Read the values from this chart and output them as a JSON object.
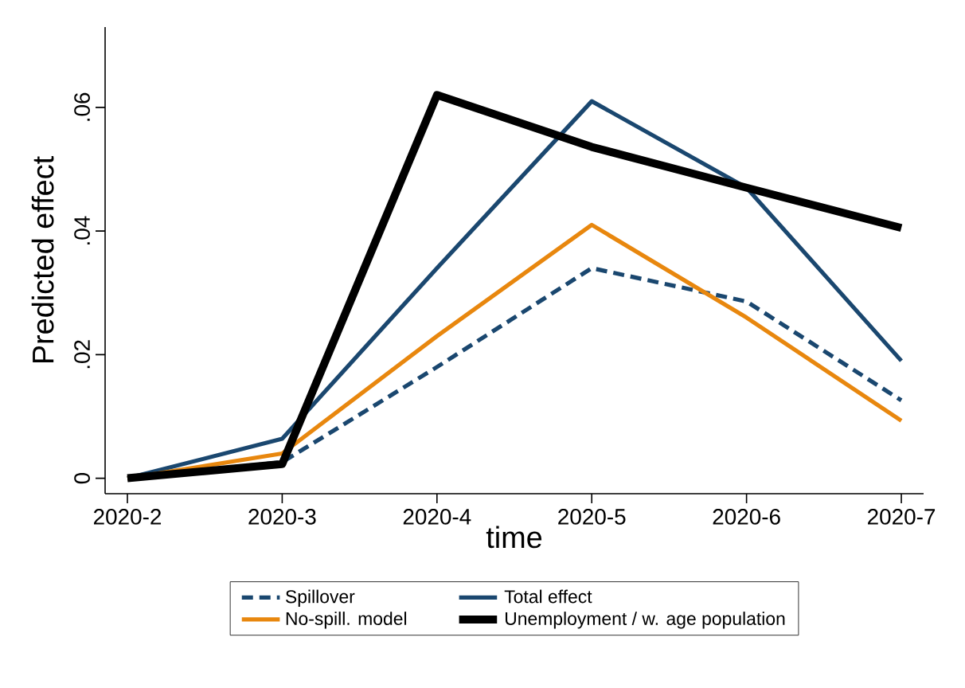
{
  "chart_data": {
    "type": "line",
    "xlabel": "time",
    "ylabel": "Predicted effect",
    "categories": [
      "2020-2",
      "2020-3",
      "2020-4",
      "2020-5",
      "2020-6",
      "2020-7"
    ],
    "series": [
      {
        "name": "Spillover",
        "color": "#1a476f",
        "line_style": "dashed",
        "values": [
          0,
          0.0026,
          0.018,
          0.034,
          0.0286,
          0.0126
        ]
      },
      {
        "name": "Total effect",
        "color": "#1a476f",
        "line_style": "solid",
        "values": [
          0,
          0.0064,
          0.034,
          0.061,
          0.047,
          0.019
        ]
      },
      {
        "name": "No-spill. model",
        "color": "#e8870e",
        "line_style": "solid",
        "values": [
          0,
          0.004,
          0.023,
          0.041,
          0.026,
          0.0093
        ]
      },
      {
        "name": "Unemployment / w. age population",
        "color": "#000000",
        "line_style": "solid",
        "values": [
          0,
          0.0023,
          0.062,
          0.0536,
          0.047,
          0.0405
        ]
      }
    ],
    "ylim": [
      -0.0025,
      0.073
    ],
    "yticks": [
      {
        "value": 0,
        "label": "0"
      },
      {
        "value": 0.02,
        "label": ".02"
      },
      {
        "value": 0.04,
        "label": ".04"
      },
      {
        "value": 0.06,
        "label": ".06"
      }
    ],
    "legend": "bottom",
    "marker": "none"
  }
}
